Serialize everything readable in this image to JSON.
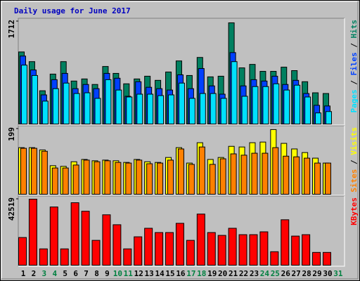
{
  "chart_data": {
    "type": "bar",
    "title": "Daily usage for June 2017",
    "categories": [
      1,
      2,
      3,
      4,
      5,
      6,
      7,
      8,
      9,
      10,
      11,
      12,
      13,
      14,
      15,
      16,
      17,
      18,
      19,
      20,
      21,
      22,
      23,
      24,
      25,
      26,
      27,
      28,
      29,
      30,
      31
    ],
    "category_colors": [
      "#000000",
      "#000000",
      "#008040",
      "#008040",
      "#000000",
      "#000000",
      "#000000",
      "#000000",
      "#000000",
      "#008040",
      "#008040",
      "#000000",
      "#000000",
      "#000000",
      "#000000",
      "#000000",
      "#008040",
      "#008040",
      "#000000",
      "#000000",
      "#000000",
      "#000000",
      "#000000",
      "#008040",
      "#008040",
      "#000000",
      "#000000",
      "#000000",
      "#000000",
      "#000000",
      "#008040"
    ],
    "legend_separator": " / ",
    "panels": [
      {
        "ylim": [
          0,
          1712
        ],
        "yticks": [
          1712
        ],
        "series": [
          {
            "name": "Hits",
            "color": "#008060",
            "values": [
              1203,
              1041,
              555,
              833,
              1041,
              717,
              752,
              660,
              960,
              845,
              671,
              752,
              798,
              729,
              868,
              1053,
              810,
              1111,
              787,
              798,
              1689,
              937,
              995,
              879,
              879,
              949,
              891,
              706,
              521,
              509,
              null
            ]
          },
          {
            "name": "Files",
            "color": "#0040ff",
            "values": [
              1134,
              902,
              486,
              740,
              845,
              590,
              660,
              590,
              845,
              764,
              463,
              706,
              613,
              590,
              567,
              821,
              590,
              926,
              636,
              498,
              1192,
              636,
              740,
              717,
              798,
              660,
              729,
              509,
              312,
              301,
              null
            ]
          },
          {
            "name": "Pages",
            "color": "#00e0ff",
            "values": [
              983,
              810,
              382,
              590,
              683,
              509,
              521,
              428,
              740,
              567,
              451,
              498,
              498,
              474,
              486,
              683,
              428,
              509,
              509,
              428,
              1041,
              463,
              625,
              625,
              671,
              567,
              648,
              451,
              185,
              208,
              null
            ]
          }
        ]
      },
      {
        "ylim": [
          0,
          199
        ],
        "yticks": [
          199
        ],
        "series": [
          {
            "name": "Visits",
            "color": "#ffff00",
            "values": [
              142,
              142,
              135,
              87,
              85,
              99,
              106,
              102,
              104,
              102,
              97,
              106,
              99,
              97,
              112,
              142,
              95,
              157,
              106,
              112,
              146,
              144,
              157,
              159,
              197,
              155,
              138,
              127,
              110,
              95,
              null
            ]
          },
          {
            "name": "Sites",
            "color": "#ff8000",
            "values": [
              140,
              140,
              131,
              80,
              80,
              89,
              104,
              99,
              102,
              97,
              95,
              104,
              93,
              95,
              104,
              138,
              91,
              144,
              91,
              108,
              123,
              119,
              125,
              125,
              142,
              116,
              114,
              110,
              95,
              95,
              null
            ]
          }
        ]
      },
      {
        "ylim": [
          0,
          42519
        ],
        "yticks": [
          42519
        ],
        "series": [
          {
            "name": "KBytes",
            "color": "#ff0000",
            "values": [
              17830,
              42519,
              10516,
              37490,
              10516,
              40234,
              34747,
              16002,
              32461,
              26060,
              10516,
              18288,
              23774,
              21031,
              21031,
              26975,
              16002,
              32918,
              21031,
              19202,
              23774,
              19660,
              19660,
              21488,
              8687,
              29261,
              18745,
              19660,
              8230,
              8230,
              null
            ]
          }
        ]
      }
    ]
  }
}
